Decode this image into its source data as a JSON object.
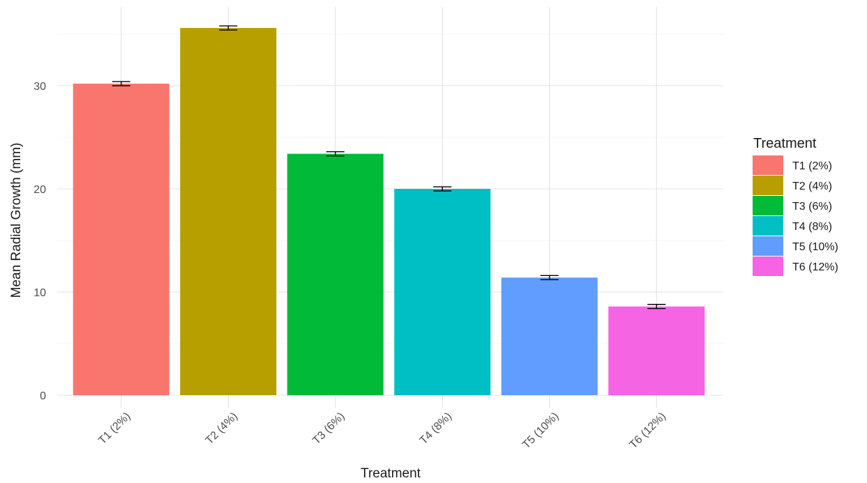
{
  "chart_data": {
    "type": "bar",
    "categories": [
      "T1 (2%)",
      "T2 (4%)",
      "T3 (6%)",
      "T4 (8%)",
      "T5 (10%)",
      "T6 (12%)"
    ],
    "values": [
      30.2,
      35.6,
      23.4,
      20.0,
      11.4,
      8.6
    ],
    "error_low": [
      30.0,
      35.4,
      23.2,
      19.8,
      11.2,
      8.4
    ],
    "error_high": [
      30.4,
      35.8,
      23.6,
      20.2,
      11.6,
      8.8
    ],
    "colors": [
      "#F8766D",
      "#B79F00",
      "#00BA38",
      "#00BFC4",
      "#619CFF",
      "#F564E3"
    ],
    "title": "",
    "xlabel": "Treatment",
    "ylabel": "Mean Radial Growth (mm)",
    "ylim": [
      0,
      36.5
    ],
    "yticks": [
      0,
      10,
      20,
      30
    ],
    "grid": true,
    "legend": {
      "title": "Treatment",
      "position": "right",
      "labels": [
        "T1 (2%)",
        "T2 (4%)",
        "T3 (6%)",
        "T4 (8%)",
        "T5 (10%)",
        "T6 (12%)"
      ]
    }
  }
}
